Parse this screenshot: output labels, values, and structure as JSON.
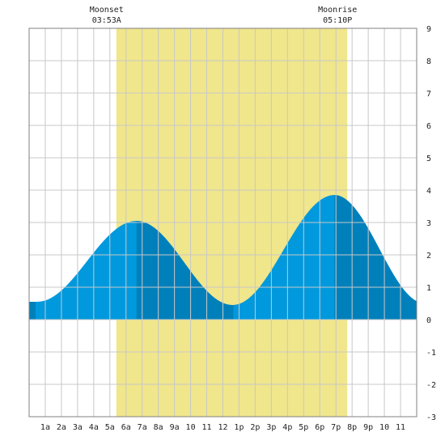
{
  "chart_data": {
    "type": "area",
    "xlabel": "",
    "ylabel": "",
    "grid": true,
    "x_range_hours": [
      0,
      24
    ],
    "ylim": [
      -3,
      9
    ],
    "x_tick_labels": [
      "1a",
      "2a",
      "3a",
      "4a",
      "5a",
      "6a",
      "7a",
      "8a",
      "9a",
      "10",
      "11",
      "12",
      "1p",
      "2p",
      "3p",
      "4p",
      "5p",
      "6p",
      "7p",
      "8p",
      "9p",
      "10",
      "11"
    ],
    "y_ticks": [
      -3,
      -2,
      -1,
      0,
      1,
      2,
      3,
      4,
      5,
      6,
      7,
      8,
      9
    ],
    "daylight": {
      "start_hour": 5.4,
      "end_hour": 19.7,
      "color": "#f0e68c"
    },
    "moon_events": [
      {
        "name": "Moonset",
        "time": "03:53A",
        "hour": 5.4
      },
      {
        "name": "Moonrise",
        "time": "05:10P",
        "hour": 19.7
      }
    ],
    "tide_points": [
      {
        "hour": 0.5,
        "height": 0.55
      },
      {
        "hour": 6.65,
        "height": 3.05
      },
      {
        "hour": 12.6,
        "height": 0.45
      },
      {
        "hour": 18.9,
        "height": 3.85
      },
      {
        "hour": 24.5,
        "height": 0.5
      }
    ],
    "dark_bands_hours": [
      [
        0,
        0.4
      ],
      [
        6.65,
        12.65
      ],
      [
        18.9,
        24
      ]
    ],
    "colors": {
      "tide_light": "#0099dd",
      "tide_dark": "#0080bb",
      "grid": "#c8c8c8",
      "border": "#808080"
    }
  }
}
